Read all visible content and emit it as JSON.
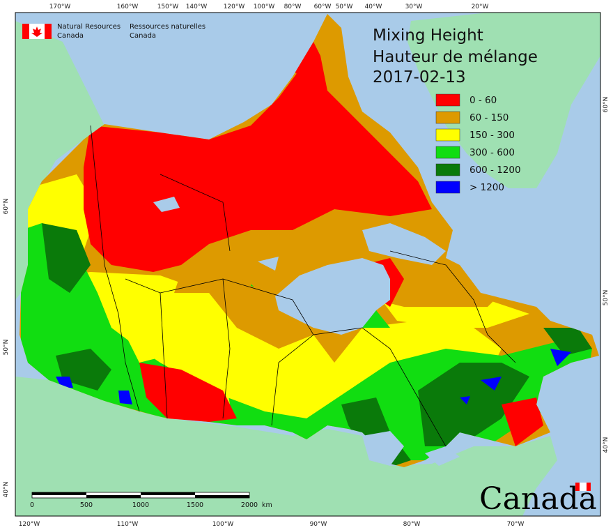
{
  "map": {
    "title_line1": "Mixing Height",
    "title_line2": "Hauteur de mélange",
    "date": "2017-02-13",
    "org_en_line1": "Natural Resources",
    "org_en_line2": "Canada",
    "org_fr_line1": "Ressources naturelles",
    "org_fr_line2": "Canada",
    "wordmark": "Canada",
    "legend": [
      {
        "label": "0 - 60",
        "color": "#ff0000"
      },
      {
        "label": "60 - 150",
        "color": "#dd9a00"
      },
      {
        "label": "150 - 300",
        "color": "#ffff00"
      },
      {
        "label": "300 - 600",
        "color": "#11dd11"
      },
      {
        "label": "600 - 1200",
        "color": "#0a7a0a"
      },
      {
        "label": "> 1200",
        "color": "#0000ff"
      }
    ],
    "colors": {
      "ocean": "#a9cbe9",
      "land_outside": "#9fe0b2",
      "border": "#000000"
    },
    "scale": {
      "ticks": [
        "0",
        "500",
        "1000",
        "1500",
        "2000"
      ],
      "unit": "km"
    },
    "graticule": {
      "top": [
        "170°W",
        "160°W",
        "150°W",
        "140°W",
        "120°W",
        "100°W",
        "80°W",
        "60°W",
        "50°W",
        "40°W",
        "30°W",
        "20°W"
      ],
      "bottom": [
        "120°W",
        "110°W",
        "100°W",
        "90°W",
        "80°W",
        "70°W"
      ],
      "left": [
        "60°N",
        "50°N",
        "40°N"
      ],
      "right": [
        "60°N",
        "50°N",
        "40°N"
      ]
    }
  }
}
